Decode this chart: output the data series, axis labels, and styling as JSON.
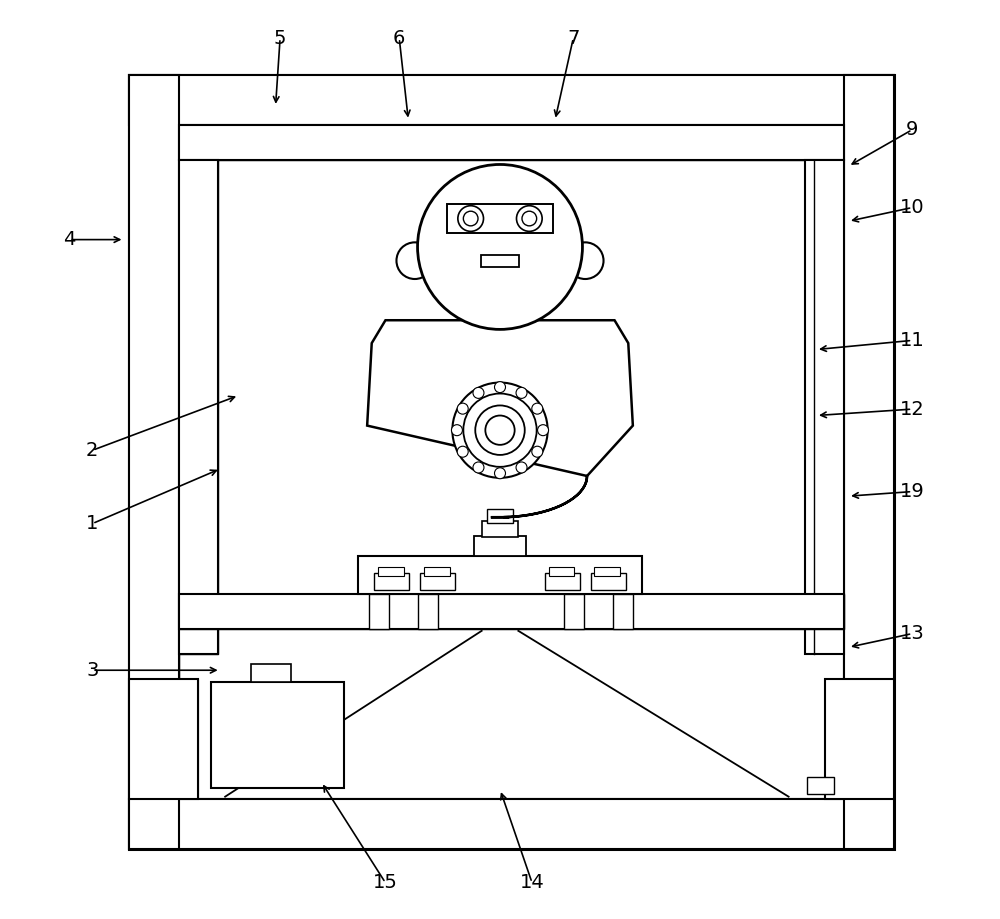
{
  "bg_color": "#ffffff",
  "line_color": "#000000",
  "annotations": [
    [
      "15",
      [
        0.375,
        0.038
      ],
      [
        0.305,
        0.148
      ]
    ],
    [
      "14",
      [
        0.535,
        0.038
      ],
      [
        0.5,
        0.14
      ]
    ],
    [
      "3",
      [
        0.055,
        0.27
      ],
      [
        0.195,
        0.27
      ]
    ],
    [
      "1",
      [
        0.055,
        0.43
      ],
      [
        0.195,
        0.49
      ]
    ],
    [
      "2",
      [
        0.055,
        0.51
      ],
      [
        0.215,
        0.57
      ]
    ],
    [
      "4",
      [
        0.03,
        0.74
      ],
      [
        0.09,
        0.74
      ]
    ],
    [
      "5",
      [
        0.26,
        0.96
      ],
      [
        0.255,
        0.885
      ]
    ],
    [
      "6",
      [
        0.39,
        0.96
      ],
      [
        0.4,
        0.87
      ]
    ],
    [
      "7",
      [
        0.58,
        0.96
      ],
      [
        0.56,
        0.87
      ]
    ],
    [
      "9",
      [
        0.95,
        0.86
      ],
      [
        0.88,
        0.82
      ]
    ],
    [
      "10",
      [
        0.95,
        0.775
      ],
      [
        0.88,
        0.76
      ]
    ],
    [
      "11",
      [
        0.95,
        0.63
      ],
      [
        0.845,
        0.62
      ]
    ],
    [
      "12",
      [
        0.95,
        0.555
      ],
      [
        0.845,
        0.548
      ]
    ],
    [
      "13",
      [
        0.95,
        0.31
      ],
      [
        0.88,
        0.295
      ]
    ],
    [
      "19",
      [
        0.95,
        0.465
      ],
      [
        0.88,
        0.46
      ]
    ]
  ]
}
